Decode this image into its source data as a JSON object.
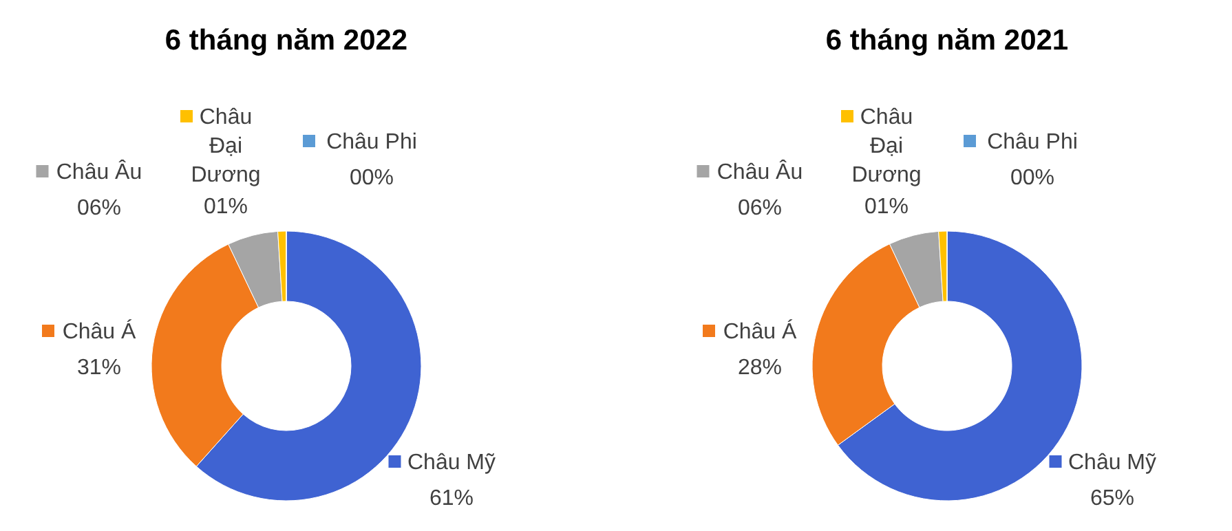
{
  "chart_data": [
    {
      "type": "donut",
      "title": "6 tháng năm 2022",
      "categories": [
        "Châu Mỹ",
        "Châu Á",
        "Châu Âu",
        "Châu Đại Dương",
        "Châu Phi"
      ],
      "values": [
        61,
        31,
        6,
        1,
        0
      ],
      "colors": [
        "#3f63d2",
        "#f27a1c",
        "#a5a5a5",
        "#ffc000",
        "#5b9bd5"
      ],
      "value_labels": [
        "61%",
        "31%",
        "06%",
        "01%",
        "00%"
      ],
      "legend": "left"
    },
    {
      "type": "donut",
      "title": "6 tháng năm 2021",
      "categories": [
        "Châu Mỹ",
        "Châu Á",
        "Châu Âu",
        "Châu Đại Dương",
        "Châu Phi"
      ],
      "values": [
        65,
        28,
        6,
        1,
        0
      ],
      "colors": [
        "#3f63d2",
        "#f27a1c",
        "#a5a5a5",
        "#ffc000",
        "#5b9bd5"
      ],
      "value_labels": [
        "65%",
        "28%",
        "06%",
        "01%",
        "00%"
      ],
      "legend": "left"
    }
  ]
}
